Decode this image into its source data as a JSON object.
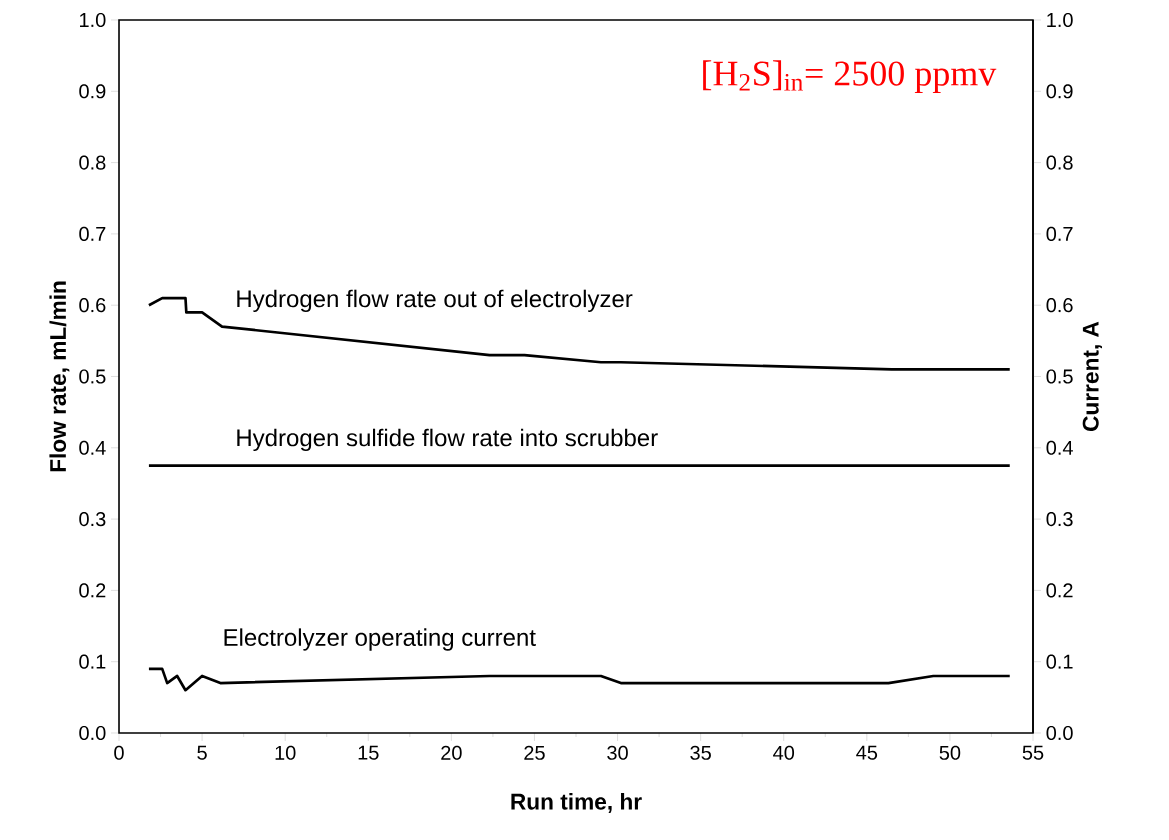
{
  "chart_data": {
    "type": "line",
    "xlabel": "Run time, hr",
    "ylabel": "Flow rate, mL/min",
    "y2label": "Current, A",
    "annotations": [
      "[H$_{2}$S]$_{in}$= 2500 ppmv"
    ],
    "series": [
      {
        "name": "Hydrogen flow rate out of electrolyzer",
        "color": "#000000",
        "x": [
          1.8,
          2.6,
          4,
          4.05,
          5,
          6.2,
          22.3,
          24.4,
          29,
          30.2,
          46.5,
          53.6
        ],
        "values": [
          0.6,
          0.61,
          0.61,
          0.59,
          0.59,
          0.57,
          0.53,
          0.53,
          0.52,
          0.52,
          0.51,
          0.51
        ]
      },
      {
        "name": "Hydrogen sulfide flow rate into scrubber",
        "color": "#000000",
        "x": [
          1.8,
          53.6
        ],
        "values": [
          0.375,
          0.375
        ]
      },
      {
        "name": "Electrolyzer operating current",
        "color": "#000000",
        "axis": "y2",
        "x": [
          1.8,
          2.6,
          2.9,
          3.5,
          4,
          5,
          6.1,
          22.3,
          29,
          30.2,
          46.3,
          49,
          53.6
        ],
        "values": [
          0.09,
          0.09,
          0.07,
          0.08,
          0.06,
          0.08,
          0.07,
          0.08,
          0.08,
          0.07,
          0.07,
          0.08,
          0.08
        ]
      }
    ],
    "xlim": [
      0,
      55
    ],
    "xticks": [
      0,
      5,
      10,
      15,
      20,
      25,
      30,
      35,
      40,
      45,
      50,
      55
    ],
    "ylim": [
      0,
      1
    ],
    "yticks": [
      {
        "value": 0,
        "label": "0.0"
      },
      {
        "value": 0.1,
        "label": "0.1"
      },
      {
        "value": 0.2,
        "label": "0.2"
      },
      {
        "value": 0.3,
        "label": "0.3"
      },
      {
        "value": 0.4,
        "label": "0.4"
      },
      {
        "value": 0.5,
        "label": "0.5"
      },
      {
        "value": 0.6,
        "label": "0.6"
      },
      {
        "value": 0.7,
        "label": "0.7"
      },
      {
        "value": 0.8,
        "label": "0.8"
      },
      {
        "value": 0.9,
        "label": "0.9"
      },
      {
        "value": 1,
        "label": "1.0"
      }
    ],
    "y2lim": [
      0,
      1
    ],
    "y2ticks": [
      {
        "value": 0,
        "label": "0.0"
      },
      {
        "value": 0.1,
        "label": "0.1"
      },
      {
        "value": 0.2,
        "label": "0.2"
      },
      {
        "value": 0.3,
        "label": "0.3"
      },
      {
        "value": 0.4,
        "label": "0.4"
      },
      {
        "value": 0.5,
        "label": "0.5"
      },
      {
        "value": 0.6,
        "label": "0.6"
      },
      {
        "value": 0.7,
        "label": "0.7"
      },
      {
        "value": 0.8,
        "label": "0.8"
      },
      {
        "value": 0.9,
        "label": "0.9"
      },
      {
        "value": 1,
        "label": "1.0"
      }
    ],
    "grid": false,
    "legend": false,
    "marker": "none",
    "line_style": "solid"
  }
}
